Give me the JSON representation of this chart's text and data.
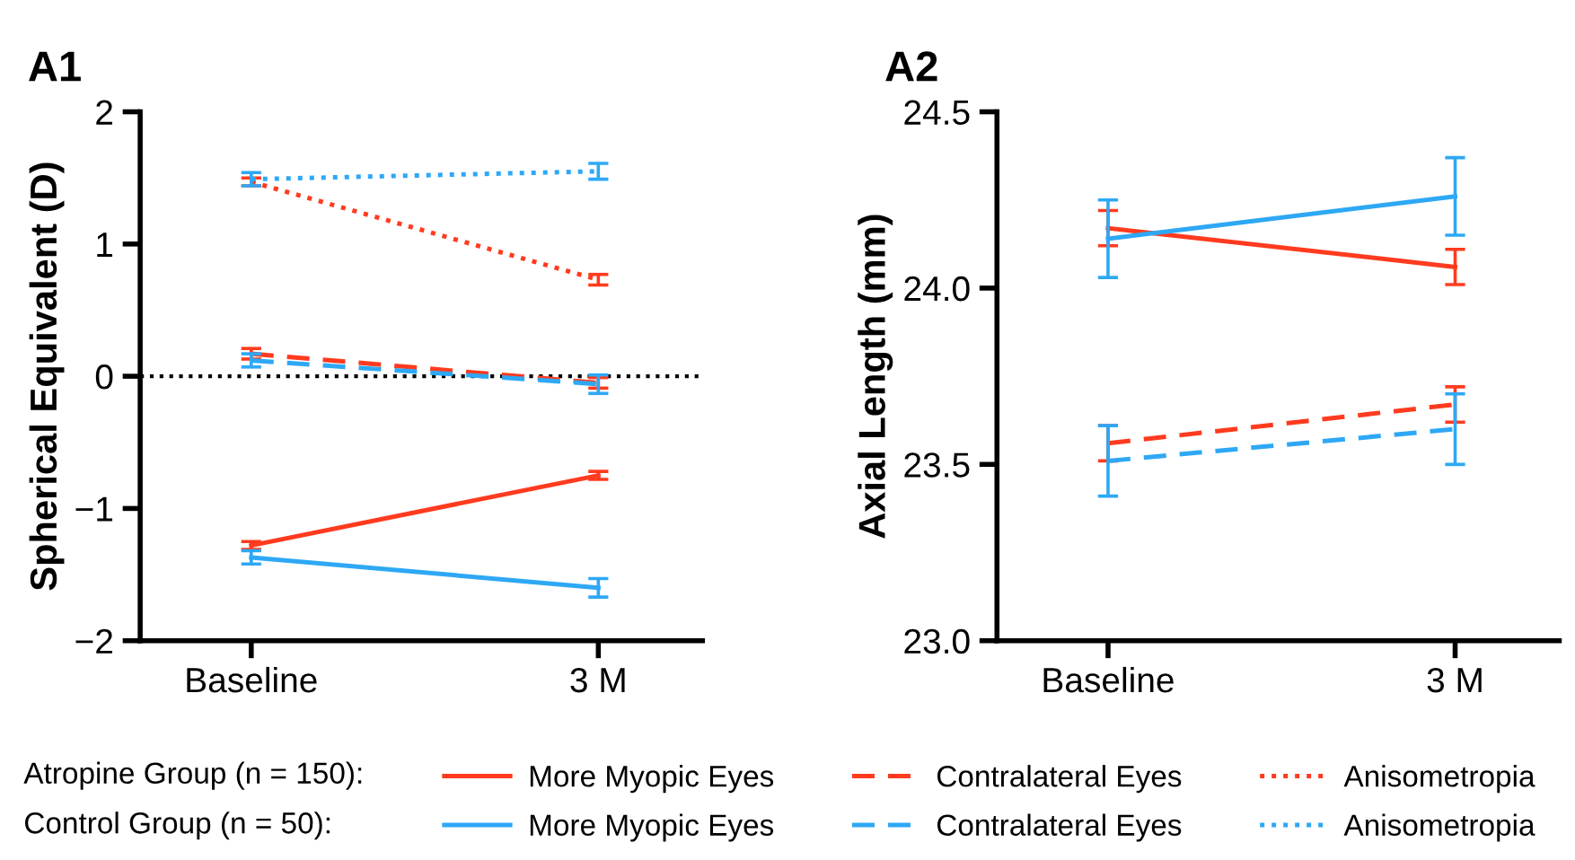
{
  "chart_data": [
    {
      "type": "line",
      "title": "A1",
      "ylabel": "Spherical Equivalent (D)",
      "categories": [
        "Baseline",
        "3 M"
      ],
      "ylim": [
        -2,
        2
      ],
      "yticks": [
        {
          "value": -2,
          "label": "−2"
        },
        {
          "value": -1,
          "label": "−1"
        },
        0,
        1,
        2
      ],
      "legend": "bottom",
      "annotations": [
        "Atropine Group (n = 150):",
        "Control Group (n = 50):"
      ],
      "ref_lines": [
        {
          "axis": "y",
          "value": 0,
          "color": "#000000",
          "line_style": "dotted"
        }
      ],
      "series": [
        {
          "name": "More Myopic Eyes",
          "color": "#ff3b1f",
          "line_style": "solid",
          "values": [
            -1.28,
            -0.75
          ],
          "errors": [
            0.03,
            0.03
          ]
        },
        {
          "name": "More Myopic Eyes",
          "color": "#2ea8f5",
          "line_style": "solid",
          "values": [
            -1.37,
            -1.6
          ],
          "errors": [
            0.05,
            0.07
          ]
        },
        {
          "name": "Contralateral Eyes",
          "color": "#ff3b1f",
          "line_style": "dashed",
          "values": [
            0.17,
            -0.05
          ],
          "errors": [
            0.04,
            0.04
          ]
        },
        {
          "name": "Contralateral Eyes",
          "color": "#2ea8f5",
          "line_style": "dashed",
          "values": [
            0.12,
            -0.06
          ],
          "errors": [
            0.05,
            0.07
          ]
        },
        {
          "name": "Anisometropia",
          "color": "#ff3b1f",
          "line_style": "dotted",
          "values": [
            1.47,
            0.73
          ],
          "errors": [
            0.03,
            0.04
          ]
        },
        {
          "name": "Anisometropia",
          "color": "#2ea8f5",
          "line_style": "dotted",
          "values": [
            1.49,
            1.55
          ],
          "errors": [
            0.05,
            0.06
          ]
        }
      ]
    },
    {
      "type": "line",
      "title": "A2",
      "ylabel": "Axial Length (mm)",
      "categories": [
        "Baseline",
        "3 M"
      ],
      "ylim": [
        23.0,
        24.5
      ],
      "yticks": [
        {
          "value": 23.0,
          "label": "23.0"
        },
        {
          "value": 23.5,
          "label": "23.5"
        },
        {
          "value": 24.0,
          "label": "24.0"
        },
        {
          "value": 24.5,
          "label": "24.5"
        }
      ],
      "series": [
        {
          "color": "#ff3b1f",
          "line_style": "solid",
          "values": [
            24.17,
            24.06
          ],
          "errors": [
            0.05,
            0.05
          ]
        },
        {
          "color": "#2ea8f5",
          "line_style": "solid",
          "values": [
            24.14,
            24.26
          ],
          "errors": [
            0.11,
            0.11
          ]
        },
        {
          "color": "#ff3b1f",
          "line_style": "dashed",
          "values": [
            23.56,
            23.67
          ],
          "errors": [
            0.05,
            0.05
          ]
        },
        {
          "color": "#2ea8f5",
          "line_style": "dashed",
          "values": [
            23.51,
            23.6
          ],
          "errors": [
            0.1,
            0.1
          ]
        }
      ]
    }
  ]
}
